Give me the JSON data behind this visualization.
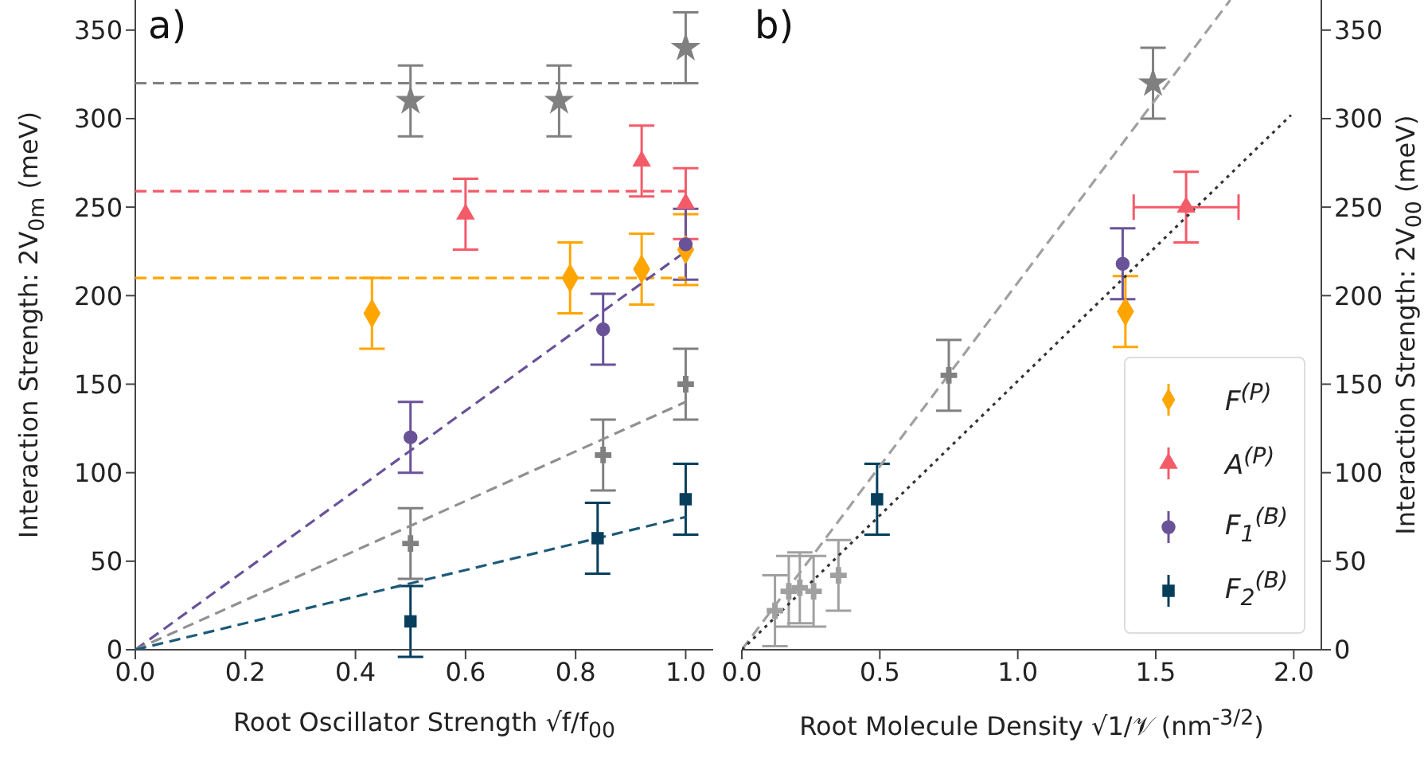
{
  "chart_data": [
    {
      "type": "scatter",
      "title": "a)",
      "xlabel": "Root Oscillator Strength √f/f$_{00}$",
      "ylabel": "Interaction Strength: 2V$_{0m}$ (meV)",
      "xlim": [
        0,
        1.05
      ],
      "ylim": [
        0,
        367
      ],
      "xticks": [
        {
          "value": 0,
          "label": "0.0"
        },
        0.2,
        0.4,
        0.6,
        0.8,
        {
          "value": 1,
          "label": "1.0"
        }
      ],
      "yticks": [
        0,
        50,
        100,
        150,
        200,
        250,
        300,
        350
      ],
      "legend": false,
      "series": [
        {
          "type": "line",
          "color": "#808080",
          "x": [
            0,
            1
          ],
          "values": [
            320,
            320
          ],
          "line_style": "dashed",
          "marker": "none"
        },
        {
          "type": "line",
          "color": "#f45b69",
          "x": [
            0,
            1
          ],
          "values": [
            259,
            259
          ],
          "line_style": "dashed",
          "marker": "none"
        },
        {
          "type": "line",
          "color": "#ffa500",
          "x": [
            0,
            1
          ],
          "values": [
            210,
            210
          ],
          "line_style": "dashed",
          "marker": "none"
        },
        {
          "type": "line",
          "color": "#6a5299",
          "x": [
            0,
            1
          ],
          "values": [
            0,
            225
          ],
          "line_style": "dashed",
          "marker": "none"
        },
        {
          "type": "line",
          "color": "#909090",
          "x": [
            0,
            1
          ],
          "values": [
            0,
            140
          ],
          "line_style": "dashed",
          "marker": "none"
        },
        {
          "type": "line",
          "color": "#1d5a78",
          "x": [
            0,
            1
          ],
          "values": [
            0,
            75
          ],
          "line_style": "dashed",
          "marker": "none"
        },
        {
          "color": "#808080",
          "x": [
            0.5,
            0.77,
            1.0
          ],
          "values": [
            310,
            310,
            340
          ],
          "errors": [
            20,
            20,
            20
          ],
          "marker": "star"
        },
        {
          "color": "#f45b69",
          "x": [
            0.6,
            0.92,
            1.0
          ],
          "values": [
            246,
            276,
            252
          ],
          "errors": [
            20,
            20,
            20
          ],
          "marker": "triangle"
        },
        {
          "color": "#ffa500",
          "x": [
            0.43,
            0.79,
            0.92,
            1.0
          ],
          "values": [
            190,
            210,
            215,
            226
          ],
          "errors": [
            20,
            20,
            20,
            20
          ],
          "marker": "diamond"
        },
        {
          "color": "#6a5299",
          "x": [
            0.5,
            0.85,
            1.0
          ],
          "values": [
            120,
            181,
            229
          ],
          "errors": [
            20,
            20,
            20
          ],
          "marker": "circle"
        },
        {
          "color": "#808080",
          "x": [
            0.5,
            0.85,
            1.0
          ],
          "values": [
            60,
            110,
            150
          ],
          "errors": [
            20,
            20,
            20
          ],
          "marker": "cross"
        },
        {
          "color": "#073e5c",
          "x": [
            0.5,
            0.84,
            1.0
          ],
          "values": [
            16,
            63,
            85
          ],
          "errors": [
            20,
            20,
            20
          ],
          "marker": "square"
        }
      ]
    },
    {
      "type": "scatter",
      "title": "b)",
      "xlabel": "Root Molecule Density √1/𝒱 (nm$^{-3/2}$)",
      "y2label": "Interaction Strength: 2V$_{00}$ (meV)",
      "xlim": [
        0,
        2.1
      ],
      "y2lim": [
        0,
        367
      ],
      "xticks": [
        {
          "value": 0,
          "label": "0.0"
        },
        0.5,
        {
          "value": 1,
          "label": "1.0"
        },
        1.5,
        {
          "value": 2,
          "label": "2.0"
        }
      ],
      "y2ticks": [
        0,
        50,
        100,
        150,
        200,
        250,
        300,
        350
      ],
      "legend": "bottom right",
      "series": [
        {
          "type": "line",
          "axis": "y2",
          "color": "#a0a0a0",
          "x": [
            0,
            1.77
          ],
          "values": [
            0,
            367
          ],
          "line_style": "dashed",
          "marker": "none"
        },
        {
          "type": "line",
          "axis": "y2",
          "color": "#333333",
          "x": [
            0,
            1.99
          ],
          "values": [
            0,
            302
          ],
          "line_style": "dotted",
          "marker": "none"
        },
        {
          "axis": "y2",
          "color": "#a0a0a0",
          "x": [
            0.12,
            0.17,
            0.21,
            0.26,
            0.35
          ],
          "values": [
            22,
            33,
            35,
            33,
            42
          ],
          "errors": [
            20,
            20,
            20,
            20,
            20
          ],
          "marker": "cross"
        },
        {
          "axis": "y2",
          "color": "#808080",
          "x": [
            0.75
          ],
          "values": [
            155
          ],
          "errors": [
            20
          ],
          "marker": "cross"
        },
        {
          "axis": "y2",
          "color": "#808080",
          "x": [
            1.49
          ],
          "values": [
            320
          ],
          "errors": [
            20
          ],
          "marker": "star"
        },
        {
          "axis": "y2",
          "name": "F$^{(P)}$",
          "color": "#ffa500",
          "x": [
            1.39
          ],
          "values": [
            191
          ],
          "errors": [
            20
          ],
          "marker": "diamond"
        },
        {
          "axis": "y2",
          "name": "A$^{(P)}$",
          "color": "#f45b69",
          "x": [
            1.61
          ],
          "values": [
            250
          ],
          "errors": [
            20
          ],
          "xerrors": [
            0.19
          ],
          "marker": "triangle"
        },
        {
          "axis": "y2",
          "name": "F$_{1}$$^{(B)}$",
          "color": "#6a5299",
          "x": [
            1.38
          ],
          "values": [
            218
          ],
          "errors": [
            20
          ],
          "marker": "circle"
        },
        {
          "axis": "y2",
          "name": "F$_{2}$$^{(B)}$",
          "color": "#073e5c",
          "x": [
            0.49
          ],
          "values": [
            85
          ],
          "errors": [
            20
          ],
          "marker": "square"
        }
      ]
    }
  ]
}
